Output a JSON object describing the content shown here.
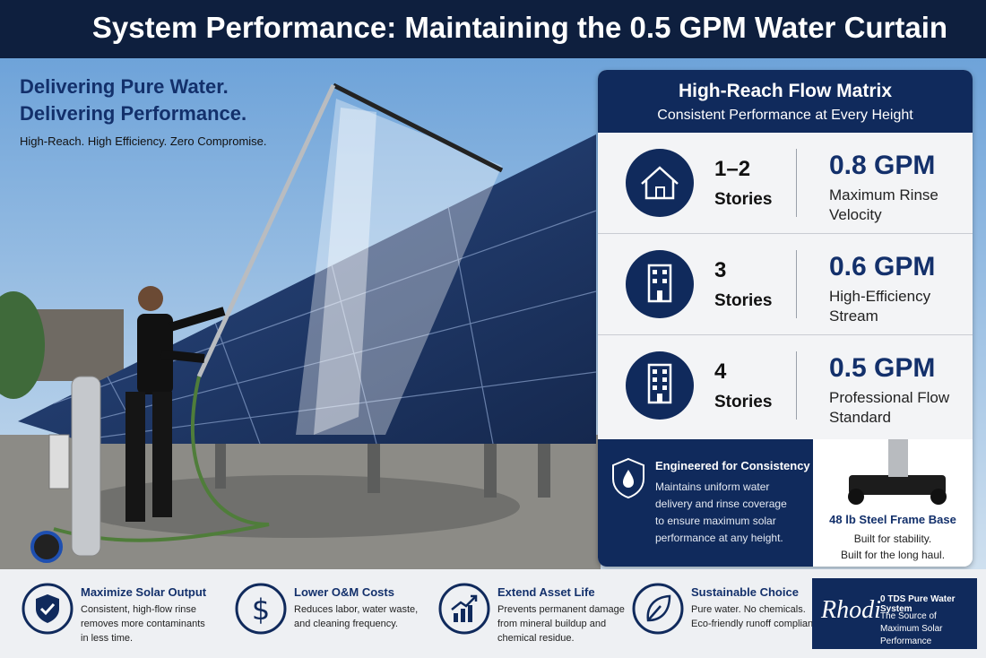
{
  "header": {
    "title": "System Performance: Maintaining the 0.5 GPM Water Curtain"
  },
  "hero": {
    "headline": [
      "Delivering Pure Water.",
      "Delivering Performance."
    ],
    "tagline": "High-Reach. High Efficiency. Zero Compromise."
  },
  "matrix": {
    "title": "High-Reach Flow Matrix",
    "subtitle": "Consistent Performance at Every Height",
    "rows": [
      {
        "stories": "1–2",
        "label": "Stories",
        "flow": "0.8 GPM",
        "description": "Maximum Rinse Velocity"
      },
      {
        "stories": "3",
        "label": "Stories",
        "flow": "0.6 GPM",
        "description": "High-Efficiency Stream"
      },
      {
        "stories": "4",
        "label": "Stories",
        "flow": "0.5 GPM",
        "description": "Professional Flow Standard"
      }
    ]
  },
  "engineered": {
    "title": "Engineered for Consistency",
    "body": "Maintains uniform water delivery and rinse coverage to ensure maximum solar performance at any height."
  },
  "frame": {
    "title": "48 lb Steel Frame Base",
    "lines": [
      "Built for stability.",
      "Built for the long haul."
    ]
  },
  "features": [
    {
      "title": "Maximize Solar Output",
      "description": "Consistent, high-flow rinse removes more contaminants in less time."
    },
    {
      "title": "Lower O&M Costs",
      "description": "Reduces labor, water waste, and cleaning frequency."
    },
    {
      "title": "Extend Asset Life",
      "description": "Prevents permanent damage from mineral buildup and chemical residue."
    },
    {
      "title": "Sustainable Choice",
      "description": "Pure water. No chemicals. Eco-friendly runoff compliant."
    }
  ],
  "brand": {
    "logo": "Rhodi",
    "line1": "0 TDS Pure Water System",
    "line2": "The Source of Maximum Solar Performance"
  }
}
